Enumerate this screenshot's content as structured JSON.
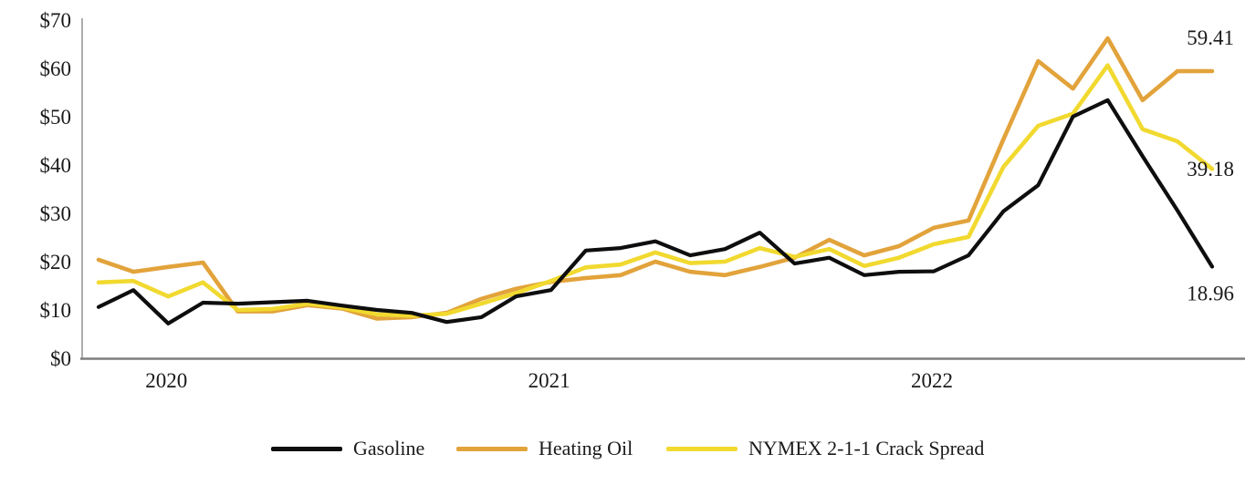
{
  "chart_data": {
    "type": "line",
    "title": "",
    "xlabel": "",
    "ylabel": "",
    "ylim": [
      0,
      70
    ],
    "yticks": [
      0,
      10,
      20,
      30,
      40,
      50,
      60,
      70
    ],
    "ytick_prefix": "$",
    "grid": false,
    "legend_position": "bottom",
    "x_tick_labels": [
      "2020",
      "2021",
      "2022"
    ],
    "x_tick_indices": [
      2,
      13,
      24
    ],
    "n_points": 33,
    "series": [
      {
        "name": "Gasoline",
        "color": "#0e0e0e",
        "end_label": "18.96",
        "values": [
          10.6,
          14.1,
          7.2,
          11.5,
          11.3,
          11.6,
          11.9,
          10.9,
          10.0,
          9.4,
          7.5,
          8.5,
          12.8,
          14.1,
          22.3,
          22.8,
          24.2,
          21.3,
          22.6,
          26.0,
          19.6,
          20.8,
          17.2,
          17.9,
          18.0,
          21.3,
          30.4,
          35.8,
          50.0,
          53.4,
          41.8,
          30.6,
          18.96
        ]
      },
      {
        "name": "Heating Oil",
        "color": "#e2a33b",
        "end_label": "59.41",
        "values": [
          20.4,
          17.9,
          18.9,
          19.8,
          9.7,
          9.7,
          11.0,
          10.3,
          8.2,
          8.5,
          9.4,
          12.3,
          14.4,
          15.8,
          16.6,
          17.2,
          20.0,
          17.9,
          17.2,
          18.9,
          20.8,
          24.5,
          21.3,
          23.2,
          27.0,
          28.5,
          45.3,
          61.5,
          55.8,
          66.2,
          53.4,
          59.4,
          59.41
        ]
      },
      {
        "name": "NYMEX 2-1-1 Crack Spread",
        "color": "#f1d92f",
        "end_label": "39.18",
        "values": [
          15.7,
          16.0,
          12.8,
          15.7,
          10.0,
          10.2,
          11.3,
          10.5,
          9.1,
          8.8,
          9.2,
          11.3,
          13.5,
          16.0,
          18.8,
          19.4,
          21.9,
          19.7,
          20.0,
          22.8,
          21.0,
          22.6,
          19.1,
          20.8,
          23.6,
          25.1,
          39.6,
          48.1,
          50.6,
          60.6,
          47.4,
          44.9,
          39.18
        ]
      }
    ],
    "axis_color": "#8a8a8a"
  }
}
